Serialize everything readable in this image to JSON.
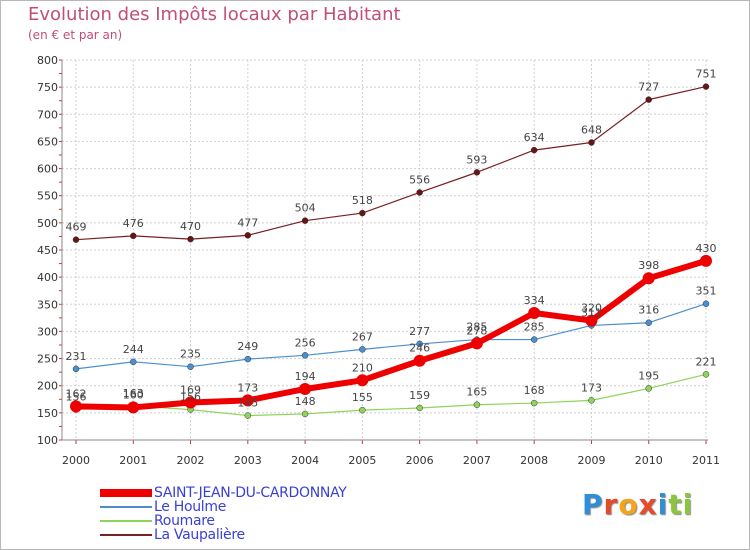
{
  "title": "Evolution des Impôts locaux par Habitant",
  "subtitle": "(en € et par an)",
  "logo": {
    "text": "Proxiti",
    "letters": [
      "P",
      "r",
      "o",
      "x",
      "i",
      "t",
      "i"
    ],
    "colors": [
      "#2e8fd8",
      "#e8492a",
      "#f4a51c",
      "#e8492a",
      "#2e8fd8",
      "#8cc63f",
      "#8cc63f"
    ]
  },
  "colors": {
    "title": "#c14e7a",
    "legend_text": "#3a3fd4",
    "grid": "#d0d0d0"
  },
  "chart_data": {
    "type": "line",
    "title": "Evolution des Impôts locaux par Habitant",
    "subtitle": "(en € et par an)",
    "xlabel": "",
    "ylabel": "",
    "x": [
      "2000",
      "2001",
      "2002",
      "2003",
      "2004",
      "2005",
      "2006",
      "2007",
      "2008",
      "2009",
      "2010",
      "2011"
    ],
    "ylim": [
      100,
      800
    ],
    "yticks": [
      100,
      150,
      200,
      250,
      300,
      350,
      400,
      450,
      500,
      550,
      600,
      650,
      700,
      750,
      800
    ],
    "grid": true,
    "legend_position": "bottom-left",
    "series": [
      {
        "name": "SAINT-JEAN-DU-CARDONNAY",
        "color": "#ee0000",
        "values": [
          162,
          160,
          169,
          173,
          194,
          210,
          246,
          278,
          334,
          320,
          398,
          430
        ]
      },
      {
        "name": "Le Houlme",
        "color": "#4a8fd0",
        "values": [
          231,
          244,
          235,
          249,
          256,
          267,
          277,
          285,
          285,
          311,
          316,
          351
        ]
      },
      {
        "name": "Roumare",
        "color": "#8fd45a",
        "values": [
          156,
          163,
          156,
          145,
          148,
          155,
          159,
          165,
          168,
          173,
          195,
          221
        ]
      },
      {
        "name": "La Vaupalière",
        "color": "#7a2020",
        "values": [
          469,
          476,
          470,
          477,
          504,
          518,
          556,
          593,
          634,
          648,
          727,
          751
        ]
      }
    ]
  }
}
